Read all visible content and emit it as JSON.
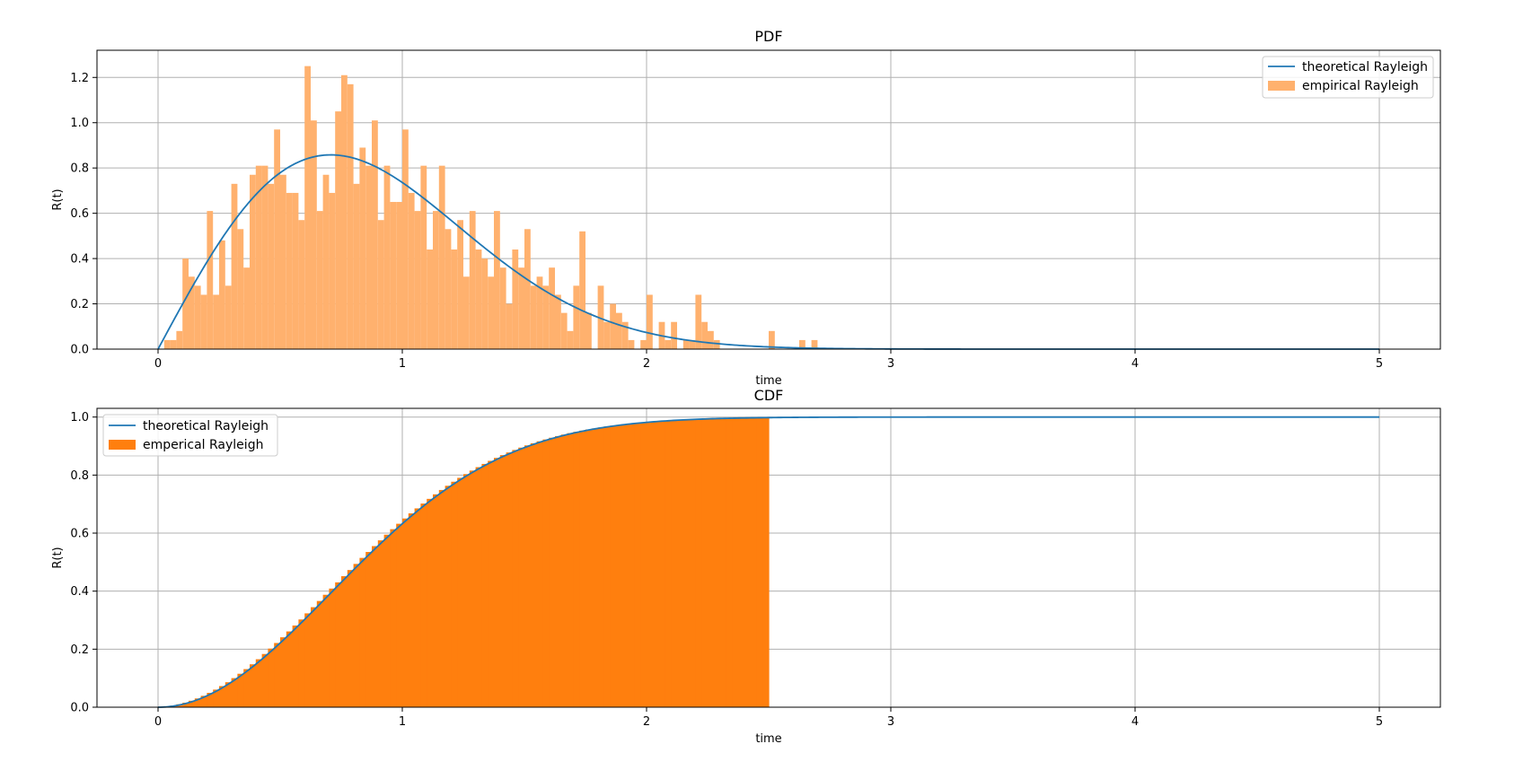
{
  "colors": {
    "line": "#1f77b4",
    "bar": "#ff7f0e",
    "bar_light": "#ffb16e",
    "grid": "#b0b0b0",
    "axis": "#000000"
  },
  "chart_data": [
    {
      "type": "bar",
      "title": "PDF",
      "xlabel": "time",
      "ylabel": "R(t)",
      "xlim": [
        -0.25,
        5.25
      ],
      "ylim": [
        0,
        1.32
      ],
      "xticks": [
        0,
        1,
        2,
        3,
        4,
        5
      ],
      "yticks": [
        0.0,
        0.2,
        0.4,
        0.6,
        0.8,
        1.0,
        1.2
      ],
      "xtick_labels": [
        "0",
        "1",
        "2",
        "3",
        "4",
        "5"
      ],
      "ytick_labels": [
        "0.0",
        "0.2",
        "0.4",
        "0.6",
        "0.8",
        "1.0",
        "1.2"
      ],
      "grid": true,
      "legend_placement": "top-right",
      "bin_width": 0.025,
      "bin_start": 0.0,
      "series": [
        {
          "name": "theoretical Rayleigh",
          "kind": "line",
          "function": "rayleigh_pdf",
          "sigma": 0.707,
          "x_range": [
            0,
            5
          ]
        },
        {
          "name": "empirical Rayleigh",
          "kind": "histogram",
          "values": [
            0.0,
            0.04,
            0.04,
            0.08,
            0.4,
            0.32,
            0.28,
            0.24,
            0.61,
            0.24,
            0.48,
            0.28,
            0.73,
            0.53,
            0.36,
            0.77,
            0.81,
            0.81,
            0.73,
            0.97,
            0.77,
            0.69,
            0.69,
            0.57,
            1.25,
            1.01,
            0.61,
            0.77,
            0.69,
            1.05,
            1.21,
            1.17,
            0.73,
            0.89,
            0.81,
            1.01,
            0.57,
            0.81,
            0.65,
            0.65,
            0.97,
            0.69,
            0.61,
            0.81,
            0.44,
            0.61,
            0.81,
            0.53,
            0.44,
            0.57,
            0.32,
            0.61,
            0.44,
            0.4,
            0.32,
            0.61,
            0.36,
            0.2,
            0.44,
            0.36,
            0.53,
            0.28,
            0.32,
            0.28,
            0.36,
            0.24,
            0.16,
            0.08,
            0.28,
            0.52,
            0.16,
            0.0,
            0.28,
            0.12,
            0.2,
            0.16,
            0.12,
            0.04,
            0.0,
            0.04,
            0.24,
            0.0,
            0.12,
            0.04,
            0.12,
            0.0,
            0.04,
            0.04,
            0.24,
            0.12,
            0.08,
            0.04,
            0.0,
            0.0,
            0.0,
            0.0,
            0.0,
            0.0,
            0.0,
            0.0,
            0.08,
            0.0,
            0.0,
            0.0,
            0.0,
            0.04,
            0.0,
            0.04,
            0.0,
            0.0
          ]
        }
      ]
    },
    {
      "type": "bar",
      "title": "CDF",
      "xlabel": "time",
      "ylabel": "R(t)",
      "xlim": [
        -0.25,
        5.25
      ],
      "ylim": [
        0,
        1.03
      ],
      "xticks": [
        0,
        1,
        2,
        3,
        4,
        5
      ],
      "yticks": [
        0.0,
        0.2,
        0.4,
        0.6,
        0.8,
        1.0
      ],
      "xtick_labels": [
        "0",
        "1",
        "2",
        "3",
        "4",
        "5"
      ],
      "ytick_labels": [
        "0.0",
        "0.2",
        "0.4",
        "0.6",
        "0.8",
        "1.0"
      ],
      "grid": true,
      "legend_placement": "top-left",
      "bin_width": 0.025,
      "bin_start": 0.0,
      "hist_end": 2.5,
      "series": [
        {
          "name": "theoretical Rayleigh",
          "kind": "line",
          "function": "rayleigh_cdf",
          "sigma": 0.707,
          "x_range": [
            0,
            5
          ]
        },
        {
          "name": "emperical Rayleigh",
          "kind": "histogram",
          "function": "rayleigh_cdf",
          "sigma": 0.707
        }
      ]
    }
  ]
}
